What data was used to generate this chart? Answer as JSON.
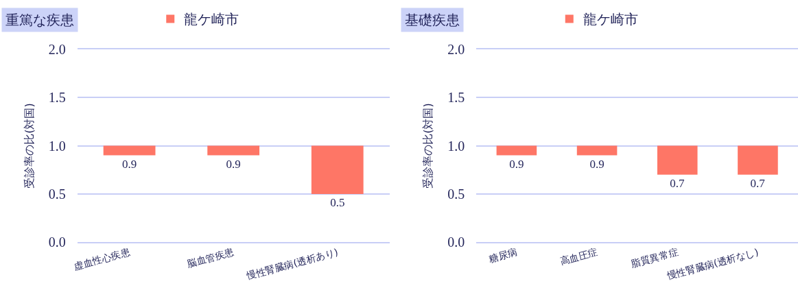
{
  "chart_data": [
    {
      "type": "bar",
      "title": "重篤な疾患",
      "ylabel": "受診率の比(対国)",
      "categories": [
        "虚血性心疾患",
        "脳血管疾患",
        "慢性腎臓病(透析あり)"
      ],
      "series": [
        {
          "name": "龍ケ崎市",
          "color": "#fe7666",
          "base": [
            1,
            1,
            1
          ],
          "values": [
            -0.1,
            -0.1,
            -0.5
          ],
          "value_labels": [
            "0.9",
            "0.9",
            "0.5"
          ]
        }
      ],
      "ylim": [
        0,
        2
      ],
      "yticks": [
        {
          "value": 0,
          "label": "0.0"
        },
        {
          "value": 0.5,
          "label": "0.5"
        },
        {
          "value": 1,
          "label": "1.0"
        },
        {
          "value": 1.5,
          "label": "1.5"
        },
        {
          "value": 2,
          "label": "2.0"
        }
      ],
      "grid": "y",
      "legend": "top"
    },
    {
      "type": "bar",
      "title": "基礎疾患",
      "ylabel": "受診率の比(対国)",
      "categories": [
        "糖尿病",
        "高血圧症",
        "脂質異常症",
        "慢性腎臓病(透析なし)"
      ],
      "series": [
        {
          "name": "龍ケ崎市",
          "color": "#fe7666",
          "base": [
            1,
            1,
            1,
            1
          ],
          "values": [
            -0.1,
            -0.1,
            -0.3,
            -0.3
          ],
          "value_labels": [
            "0.9",
            "0.9",
            "0.7",
            "0.7"
          ]
        }
      ],
      "ylim": [
        0,
        2
      ],
      "yticks": [
        {
          "value": 0,
          "label": "0.0"
        },
        {
          "value": 0.5,
          "label": "0.5"
        },
        {
          "value": 1,
          "label": "1.0"
        },
        {
          "value": 1.5,
          "label": "1.5"
        },
        {
          "value": 2,
          "label": "2.0"
        }
      ],
      "grid": "y",
      "legend": "top"
    }
  ]
}
